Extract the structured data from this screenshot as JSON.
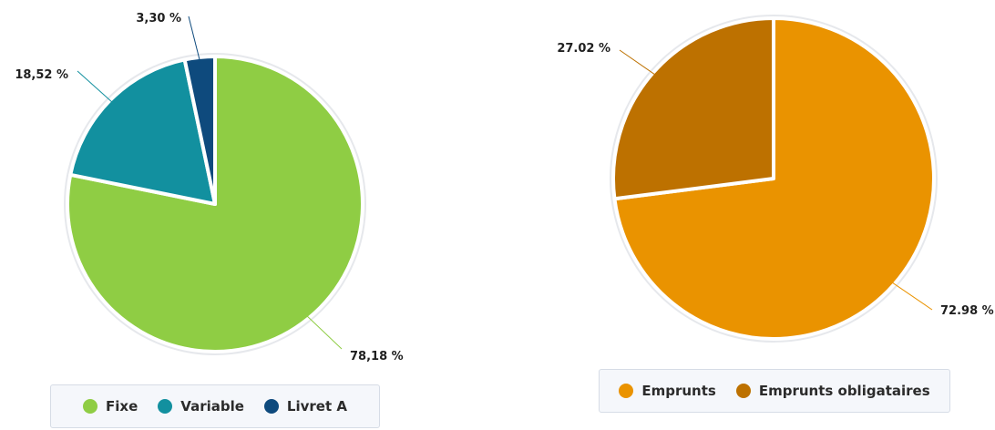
{
  "chart_data": [
    {
      "type": "pie",
      "slices": [
        {
          "name": "Fixe",
          "value": 78.18,
          "label": "78,18 %",
          "color": "#8fcd44"
        },
        {
          "name": "Variable",
          "value": 18.52,
          "label": "18,52 %",
          "color": "#12909f"
        },
        {
          "name": "Livret A",
          "value": 3.3,
          "label": "3,30 %",
          "color": "#0e4a7d"
        }
      ],
      "legend_position": "bottom"
    },
    {
      "type": "pie",
      "slices": [
        {
          "name": "Emprunts",
          "value": 72.98,
          "label": "72.98 %",
          "color": "#ea9300"
        },
        {
          "name": "Emprunts obligataires",
          "value": 27.02,
          "label": "27.02 %",
          "color": "#bd7100"
        }
      ],
      "legend_position": "bottom"
    }
  ]
}
